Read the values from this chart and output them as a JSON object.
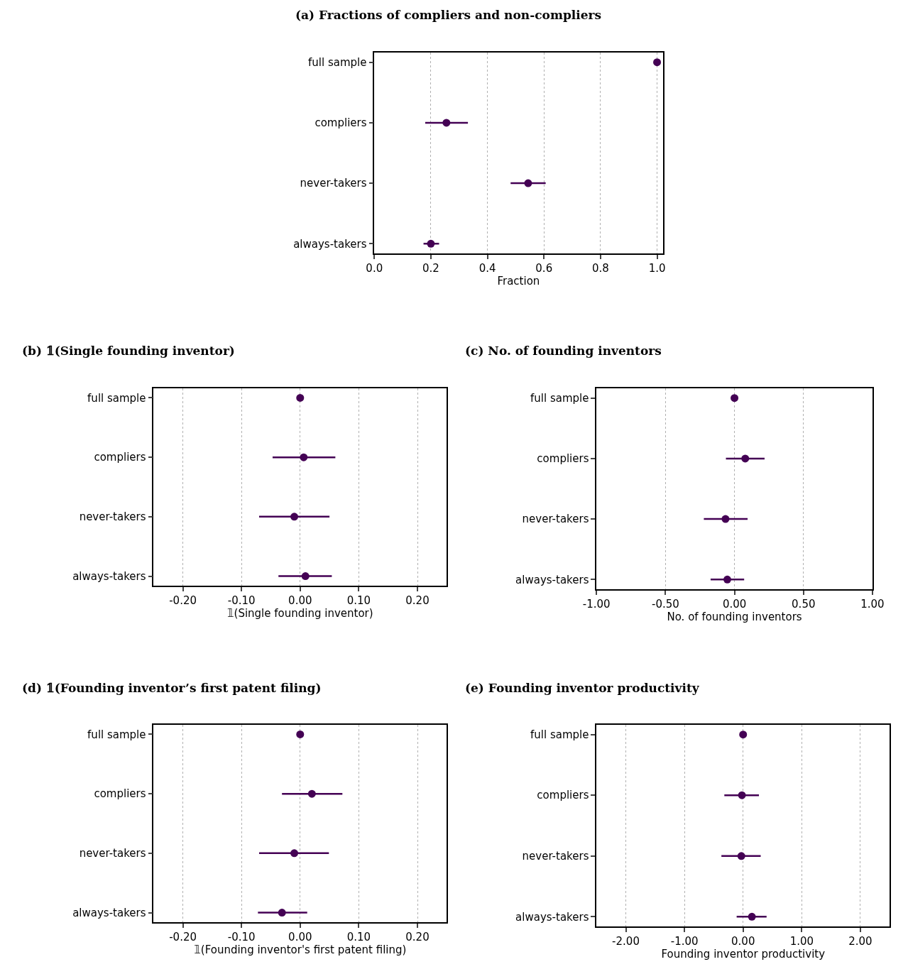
{
  "chart_data": [
    {
      "type": "scatter",
      "orientation": "horizontal",
      "title": "(a) Fractions of compliers and non-compliers",
      "xlabel": "Fraction",
      "categories": [
        "full sample",
        "compliers",
        "never-takers",
        "always-takers"
      ],
      "values": [
        1.0,
        0.255,
        0.544,
        0.2
      ],
      "errors": [
        null,
        [
          0.18,
          0.331
        ],
        [
          0.482,
          0.606
        ],
        [
          0.174,
          0.229
        ]
      ],
      "color": "#440154",
      "xlim": [
        0,
        1.02
      ],
      "xticks": [
        {
          "value": 0,
          "label": "0.0"
        },
        {
          "value": 0.2,
          "label": "0.2"
        },
        {
          "value": 0.4,
          "label": "0.4"
        },
        {
          "value": 0.6,
          "label": "0.6"
        },
        {
          "value": 0.8,
          "label": "0.8"
        },
        {
          "value": 1.0,
          "label": "1.0"
        }
      ],
      "grid": "x",
      "marker": "circle"
    },
    {
      "type": "scatter",
      "orientation": "horizontal",
      "title": "(b) 𝟙(Single founding inventor)",
      "xlabel": "𝟙(Single founding inventor)",
      "categories": [
        "full sample",
        "compliers",
        "never-takers",
        "always-takers"
      ],
      "values": [
        0.0,
        0.006,
        -0.01,
        0.009
      ],
      "errors": [
        null,
        [
          -0.047,
          0.06
        ],
        [
          -0.07,
          0.05
        ],
        [
          -0.037,
          0.054
        ]
      ],
      "color": "#440154",
      "xlim": [
        -0.25,
        0.25
      ],
      "xticks": [
        {
          "value": -0.2,
          "label": "-0.20"
        },
        {
          "value": -0.1,
          "label": "-0.10"
        },
        {
          "value": 0,
          "label": "0.00"
        },
        {
          "value": 0.1,
          "label": "0.10"
        },
        {
          "value": 0.2,
          "label": "0.20"
        }
      ],
      "grid": "x",
      "marker": "circle"
    },
    {
      "type": "scatter",
      "orientation": "horizontal",
      "title": "(c) No. of founding inventors",
      "xlabel": "No. of founding inventors",
      "categories": [
        "full sample",
        "compliers",
        "never-takers",
        "always-takers"
      ],
      "values": [
        0.0,
        0.078,
        -0.065,
        -0.052
      ],
      "errors": [
        null,
        [
          -0.062,
          0.218
        ],
        [
          -0.222,
          0.095
        ],
        [
          -0.173,
          0.07
        ]
      ],
      "color": "#440154",
      "xlim": [
        -1,
        1
      ],
      "xticks": [
        {
          "value": -1,
          "label": "-1.00"
        },
        {
          "value": -0.5,
          "label": "-0.50"
        },
        {
          "value": 0,
          "label": "0.00"
        },
        {
          "value": 0.5,
          "label": "0.50"
        },
        {
          "value": 1,
          "label": "1.00"
        }
      ],
      "grid": "x",
      "marker": "circle"
    },
    {
      "type": "scatter",
      "orientation": "horizontal",
      "title": "(d) 𝟙(Founding inventor’s first patent filing)",
      "xlabel": "𝟙(Founding inventor's first patent filing)",
      "categories": [
        "full sample",
        "compliers",
        "never-takers",
        "always-takers"
      ],
      "values": [
        0.0,
        0.02,
        -0.01,
        -0.031
      ],
      "errors": [
        null,
        [
          -0.031,
          0.072
        ],
        [
          -0.07,
          0.049
        ],
        [
          -0.072,
          0.012
        ]
      ],
      "color": "#440154",
      "xlim": [
        -0.25,
        0.25
      ],
      "xticks": [
        {
          "value": -0.2,
          "label": "-0.20"
        },
        {
          "value": -0.1,
          "label": "-0.10"
        },
        {
          "value": 0,
          "label": "0.00"
        },
        {
          "value": 0.1,
          "label": "0.10"
        },
        {
          "value": 0.2,
          "label": "0.20"
        }
      ],
      "grid": "x",
      "marker": "circle"
    },
    {
      "type": "scatter",
      "orientation": "horizontal",
      "title": "(e) Founding inventor productivity",
      "xlabel": "Founding inventor productivity",
      "categories": [
        "full sample",
        "compliers",
        "never-takers",
        "always-takers"
      ],
      "values": [
        0.0,
        -0.02,
        -0.03,
        0.15
      ],
      "errors": [
        null,
        [
          -0.32,
          0.27
        ],
        [
          -0.37,
          0.3
        ],
        [
          -0.11,
          0.4
        ]
      ],
      "color": "#440154",
      "xlim": [
        -2.5,
        2.5
      ],
      "xticks": [
        {
          "value": -2,
          "label": "-2.00"
        },
        {
          "value": -1,
          "label": "-1.00"
        },
        {
          "value": 0,
          "label": "0.00"
        },
        {
          "value": 1,
          "label": "1.00"
        },
        {
          "value": 2,
          "label": "2.00"
        }
      ],
      "grid": "x",
      "marker": "circle"
    }
  ]
}
